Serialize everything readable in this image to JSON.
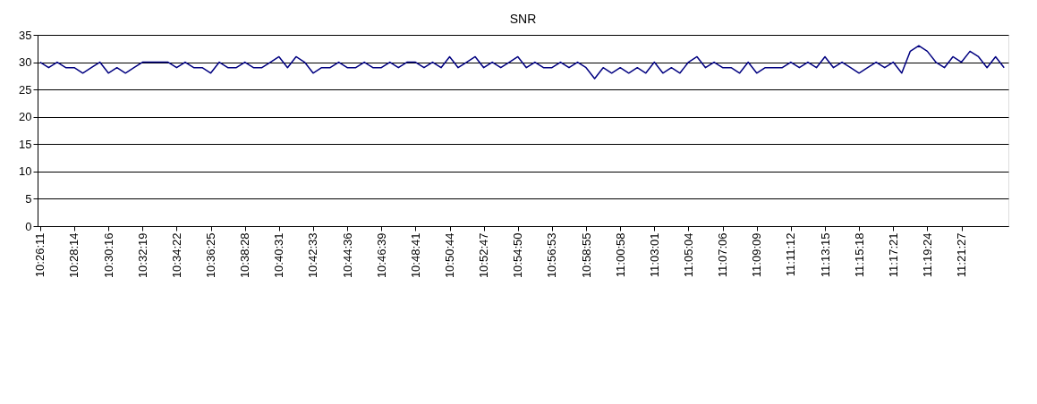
{
  "chart_data": {
    "type": "line",
    "title": "SNR",
    "categories": [
      "10:26:11",
      null,
      null,
      null,
      "10:28:14",
      null,
      null,
      null,
      "10:30:16",
      null,
      null,
      null,
      "10:32:19",
      null,
      null,
      null,
      "10:34:22",
      null,
      null,
      null,
      "10:36:25",
      null,
      null,
      null,
      "10:38:28",
      null,
      null,
      null,
      "10:40:31",
      null,
      null,
      null,
      "10:42:33",
      null,
      null,
      null,
      "10:44:36",
      null,
      null,
      null,
      "10:46:39",
      null,
      null,
      null,
      "10:48:41",
      null,
      null,
      null,
      "10:50:44",
      null,
      null,
      null,
      "10:52:47",
      null,
      null,
      null,
      "10:54:50",
      null,
      null,
      null,
      "10:56:53",
      null,
      null,
      null,
      "10:58:55",
      null,
      null,
      null,
      "11:00:58",
      null,
      null,
      null,
      "11:03:01",
      null,
      null,
      null,
      "11:05:04",
      null,
      null,
      null,
      "11:07:06",
      null,
      null,
      null,
      "11:09:09",
      null,
      null,
      null,
      "11:11:12",
      null,
      null,
      null,
      "11:13:15",
      null,
      null,
      null,
      "11:15:18",
      null,
      null,
      null,
      "11:17:21",
      null,
      null,
      null,
      "11:19:24",
      null,
      null,
      null,
      "11:21:27",
      null,
      null,
      null,
      null,
      null
    ],
    "series": [
      {
        "color": "#000080",
        "values": [
          30,
          29,
          30,
          29,
          29,
          28,
          29,
          30,
          28,
          29,
          28,
          29,
          30,
          30,
          30,
          30,
          29,
          30,
          29,
          29,
          28,
          30,
          29,
          29,
          30,
          29,
          29,
          30,
          31,
          29,
          31,
          30,
          28,
          29,
          29,
          30,
          29,
          29,
          30,
          29,
          29,
          30,
          29,
          30,
          30,
          29,
          30,
          29,
          31,
          29,
          30,
          31,
          29,
          30,
          29,
          30,
          31,
          29,
          30,
          29,
          29,
          30,
          29,
          30,
          29,
          27,
          29,
          28,
          29,
          28,
          29,
          28,
          30,
          28,
          29,
          28,
          30,
          31,
          29,
          30,
          29,
          29,
          28,
          30,
          28,
          29,
          29,
          29,
          30,
          29,
          30,
          29,
          31,
          29,
          30,
          29,
          28,
          29,
          30,
          29,
          30,
          28,
          32,
          33,
          32,
          30,
          29,
          31,
          30,
          32,
          31,
          29,
          31,
          29
        ]
      }
    ],
    "ylim": [
      0,
      35
    ],
    "yticks": [
      0,
      5,
      10,
      15,
      20,
      25,
      30,
      35
    ],
    "grid": "y",
    "marker": "none",
    "line_style": "solid"
  }
}
